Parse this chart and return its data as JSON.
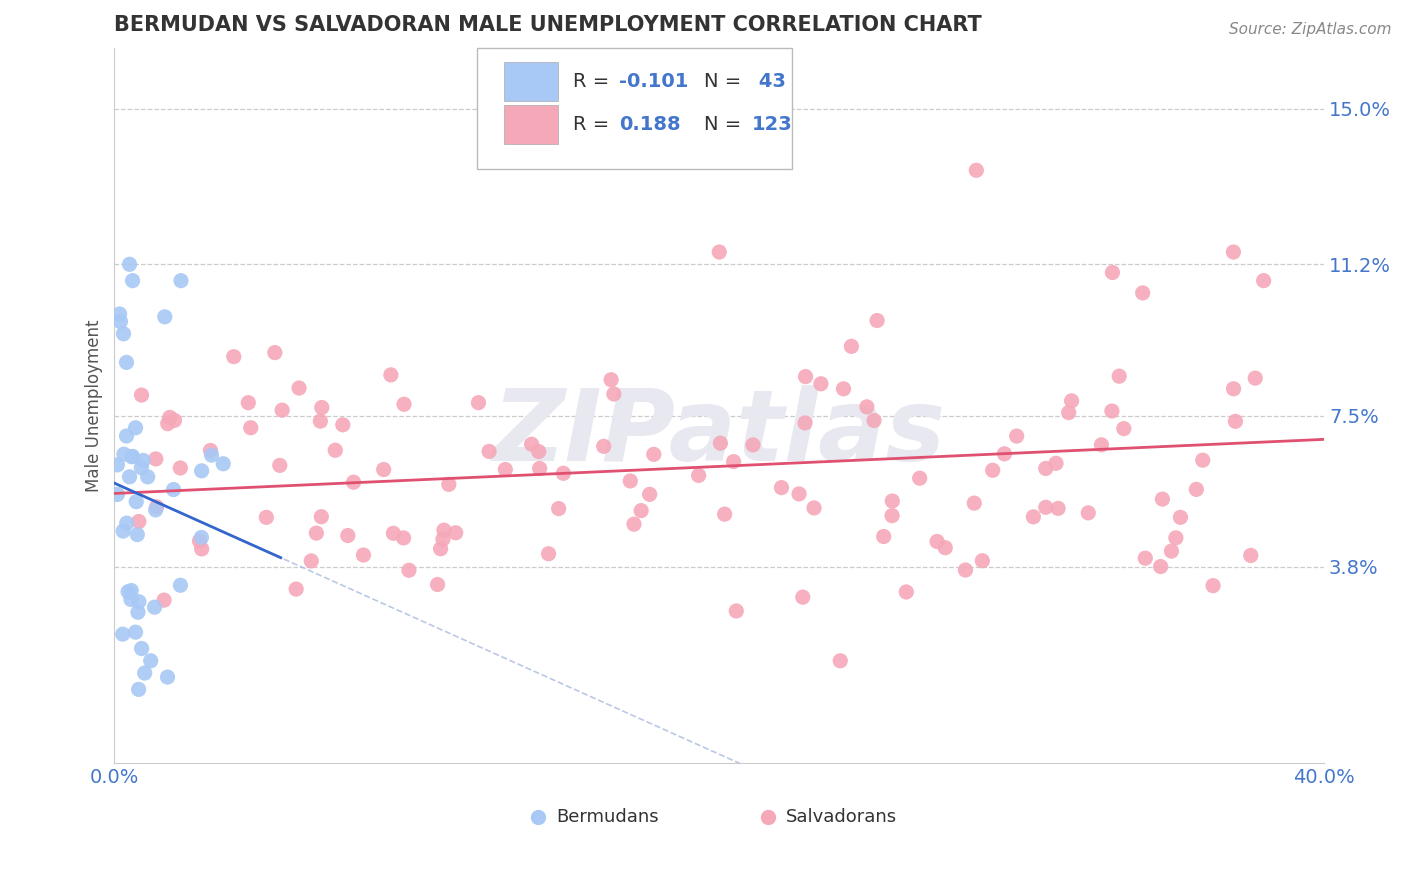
{
  "title": "BERMUDAN VS SALVADORAN MALE UNEMPLOYMENT CORRELATION CHART",
  "source": "Source: ZipAtlas.com",
  "ylabel": "Male Unemployment",
  "ytick_values": [
    0.038,
    0.075,
    0.112,
    0.15
  ],
  "ytick_labels": [
    "3.8%",
    "7.5%",
    "11.2%",
    "15.0%"
  ],
  "xtick_values": [
    0.0,
    0.4
  ],
  "xtick_labels": [
    "0.0%",
    "40.0%"
  ],
  "xlim": [
    0.0,
    0.4
  ],
  "ylim": [
    -0.01,
    0.165
  ],
  "bermuda_color": "#a8c8f5",
  "salvador_color": "#f5a8b8",
  "bermuda_line_color": "#3366cc",
  "bermuda_dash_color": "#aabbdd",
  "salvador_line_color": "#e05070",
  "grid_color": "#cccccc",
  "title_color": "#333333",
  "axis_label_color": "#4477cc",
  "tick_color": "#4477cc",
  "watermark": "ZIPatlas",
  "watermark_color": "#e8e8f0",
  "background_color": "#ffffff",
  "bermuda_r": -0.101,
  "bermuda_n": 43,
  "salvador_r": 0.188,
  "salvador_n": 123,
  "legend_r1_label": "R = ",
  "legend_r1_val": "-0.101",
  "legend_n1_label": "N = ",
  "legend_n1_val": " 43",
  "legend_r2_label": "R =  ",
  "legend_r2_val": "0.188",
  "legend_n2_label": "N = ",
  "legend_n2_val": "123"
}
